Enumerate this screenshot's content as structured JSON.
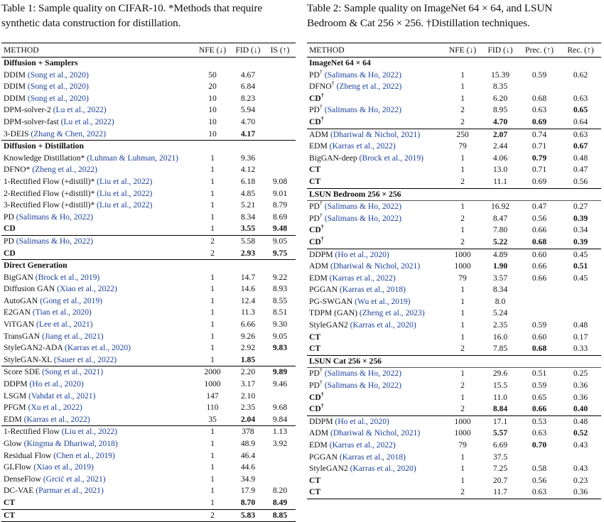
{
  "table1": {
    "caption": "Table 1: Sample quality on CIFAR-10. *Methods that require synthetic data construction for distillation.",
    "caption_line1": "Table 1: Sample quality on CIFAR-10. *Methods that require",
    "caption_line2": "synthetic data construction for distillation.",
    "headers": [
      "METHOD",
      "NFE (↓)",
      "FID (↓)",
      "IS (↑)"
    ],
    "rows": [
      {
        "kind": "section",
        "label": "Diffusion + Samplers",
        "line": "thin"
      },
      {
        "name": "DDIM",
        "ref": "(Song et al., 2020)",
        "nfe": "50",
        "fid": "4.67",
        "is": ""
      },
      {
        "name": "DDIM",
        "ref": "(Song et al., 2020)",
        "nfe": "20",
        "fid": "6.84",
        "is": ""
      },
      {
        "name": "DDIM",
        "ref": "(Song et al., 2020)",
        "nfe": "10",
        "fid": "8.23",
        "is": ""
      },
      {
        "name": "DPM-solver-2",
        "ref": "(Lu et al., 2022)",
        "nfe": "10",
        "fid": "5.94",
        "is": ""
      },
      {
        "name": "DPM-solver-fast",
        "ref": "(Lu et al., 2022)",
        "nfe": "10",
        "fid": "4.70",
        "is": ""
      },
      {
        "name": "3-DEIS",
        "ref": "(Zhang & Chen, 2022)",
        "nfe": "10",
        "fid": "4.17",
        "is": "",
        "bold": [
          "fid"
        ]
      },
      {
        "kind": "section",
        "label": "Diffusion + Distillation",
        "line": "sep"
      },
      {
        "name": "Knowledge Distillation*",
        "ref": "(Luhman & Luhman, 2021)",
        "nfe": "1",
        "fid": "9.36",
        "is": ""
      },
      {
        "name": "DFNO*",
        "ref": "(Zheng et al., 2022)",
        "nfe": "1",
        "fid": "4.12",
        "is": ""
      },
      {
        "name": "1-Rectified Flow (+distill)*",
        "ref": "(Liu et al., 2022)",
        "nfe": "1",
        "fid": "6.18",
        "is": "9.08"
      },
      {
        "name": "2-Rectified Flow (+distill)*",
        "ref": "(Liu et al., 2022)",
        "nfe": "1",
        "fid": "4.85",
        "is": "9.01"
      },
      {
        "name": "3-Rectified Flow (+distill)*",
        "ref": "(Liu et al., 2022)",
        "nfe": "1",
        "fid": "5.21",
        "is": "8.79"
      },
      {
        "name": "PD",
        "ref": "(Salimans & Ho, 2022)",
        "nfe": "1",
        "fid": "8.34",
        "is": "8.69"
      },
      {
        "name": "CD",
        "ref": "",
        "nfe": "1",
        "fid": "3.55",
        "is": "9.48",
        "bold": [
          "name",
          "fid",
          "is"
        ]
      },
      {
        "name": "PD",
        "ref": "(Salimans & Ho, 2022)",
        "nfe": "2",
        "fid": "5.58",
        "is": "9.05",
        "line": "sep"
      },
      {
        "name": "CD",
        "ref": "",
        "nfe": "2",
        "fid": "2.93",
        "is": "9.75",
        "bold": [
          "name",
          "fid",
          "is"
        ]
      },
      {
        "kind": "section",
        "label": "Direct Generation",
        "line": "sep"
      },
      {
        "name": "BigGAN",
        "ref": "(Brock et al., 2019)",
        "nfe": "1",
        "fid": "14.7",
        "is": "9.22"
      },
      {
        "name": "Diffusion GAN",
        "ref": "(Xiao et al., 2022)",
        "nfe": "1",
        "fid": "14.6",
        "is": "8.93"
      },
      {
        "name": "AutoGAN",
        "ref": "(Gong et al., 2019)",
        "nfe": "1",
        "fid": "12.4",
        "is": "8.55"
      },
      {
        "name": "E2GAN",
        "ref": "(Tian et al., 2020)",
        "nfe": "1",
        "fid": "11.3",
        "is": "8.51"
      },
      {
        "name": "ViTGAN",
        "ref": "(Lee et al., 2021)",
        "nfe": "1",
        "fid": "6.66",
        "is": "9.30"
      },
      {
        "name": "TransGAN",
        "ref": "(Jiang et al., 2021)",
        "nfe": "1",
        "fid": "9.26",
        "is": "9.05"
      },
      {
        "name": "StyleGAN2-ADA",
        "ref": "(Karras et al., 2020)",
        "nfe": "1",
        "fid": "2.92",
        "is": "9.83",
        "bold": [
          "is"
        ]
      },
      {
        "name": "StyleGAN-XL",
        "ref": "(Sauer et al., 2022)",
        "nfe": "1",
        "fid": "1.85",
        "is": "",
        "bold": [
          "fid"
        ]
      },
      {
        "name": "Score SDE",
        "ref": "(Song et al., 2021)",
        "nfe": "2000",
        "fid": "2.20",
        "is": "9.89",
        "bold": [
          "is"
        ],
        "line": "sep"
      },
      {
        "name": "DDPM",
        "ref": "(Ho et al., 2020)",
        "nfe": "1000",
        "fid": "3.17",
        "is": "9.46"
      },
      {
        "name": "LSGM",
        "ref": "(Vahdat et al., 2021)",
        "nfe": "147",
        "fid": "2.10",
        "is": ""
      },
      {
        "name": "PFGM",
        "ref": "(Xu et al., 2022)",
        "nfe": "110",
        "fid": "2.35",
        "is": "9.68"
      },
      {
        "name": "EDM",
        "ref": "(Karras et al., 2022)",
        "nfe": "35",
        "fid": "2.04",
        "is": "9.84",
        "bold": [
          "fid"
        ]
      },
      {
        "name": "1-Rectified Flow",
        "ref": "(Liu et al., 2022)",
        "nfe": "1",
        "fid": "378",
        "is": "1.13",
        "line": "sep"
      },
      {
        "name": "Glow",
        "ref": "(Kingma & Dhariwal, 2018)",
        "nfe": "1",
        "fid": "48.9",
        "is": "3.92"
      },
      {
        "name": "Residual Flow",
        "ref": "(Chen et al., 2019)",
        "nfe": "1",
        "fid": "46.4",
        "is": ""
      },
      {
        "name": "GLFlow",
        "ref": "(Xiao et al., 2019)",
        "nfe": "1",
        "fid": "44.6",
        "is": ""
      },
      {
        "name": "DenseFlow",
        "ref": "(Grcić et al., 2021)",
        "nfe": "1",
        "fid": "34.9",
        "is": ""
      },
      {
        "name": "DC-VAE",
        "ref": "(Parmar et al., 2021)",
        "nfe": "1",
        "fid": "17.9",
        "is": "8.20"
      },
      {
        "name": "CT",
        "ref": "",
        "nfe": "1",
        "fid": "8.70",
        "is": "8.49",
        "bold": [
          "name",
          "fid",
          "is"
        ]
      },
      {
        "name": "CT",
        "ref": "",
        "nfe": "2",
        "fid": "5.83",
        "is": "8.85",
        "bold": [
          "name",
          "fid",
          "is"
        ],
        "line": "sep"
      }
    ]
  },
  "table2": {
    "caption_line1": "Table 2: Sample quality on ImageNet 64 × 64, and LSUN",
    "caption_line2": "Bedroom & Cat 256 × 256. †Distillation techniques.",
    "headers": [
      "METHOD",
      "NFE (↓)",
      "FID (↓)",
      "Prec. (↑)",
      "Rec. (↑)"
    ],
    "rows": [
      {
        "kind": "section",
        "label": "ImageNet 64 × 64",
        "line": "thin"
      },
      {
        "name": "PD",
        "dag": true,
        "ref": "(Salimans & Ho, 2022)",
        "nfe": "1",
        "fid": "15.39",
        "prec": "0.59",
        "rec": "0.62"
      },
      {
        "name": "DFNO",
        "dag": true,
        "ref": "(Zheng et al., 2022)",
        "nfe": "1",
        "fid": "8.35",
        "prec": "",
        "rec": ""
      },
      {
        "name": "CD",
        "dag": true,
        "ref": "",
        "nfe": "1",
        "fid": "6.20",
        "prec": "0.68",
        "rec": "0.63",
        "bold": [
          "name"
        ]
      },
      {
        "name": "PD",
        "dag": true,
        "ref": "(Salimans & Ho, 2022)",
        "nfe": "2",
        "fid": "8.95",
        "prec": "0.63",
        "rec": "0.65",
        "bold": [
          "rec"
        ]
      },
      {
        "name": "CD",
        "dag": true,
        "ref": "",
        "nfe": "2",
        "fid": "4.70",
        "prec": "0.69",
        "rec": "0.64",
        "bold": [
          "name",
          "fid",
          "prec"
        ]
      },
      {
        "name": "ADM",
        "ref": "(Dhariwal & Nichol, 2021)",
        "nfe": "250",
        "fid": "2.07",
        "prec": "0.74",
        "rec": "0.63",
        "bold": [
          "fid"
        ],
        "line": "sep"
      },
      {
        "name": "EDM",
        "ref": "(Karras et al., 2022)",
        "nfe": "79",
        "fid": "2.44",
        "prec": "0.71",
        "rec": "0.67",
        "bold": [
          "rec"
        ]
      },
      {
        "name": "BigGAN-deep",
        "ref": "(Brock et al., 2019)",
        "nfe": "1",
        "fid": "4.06",
        "prec": "0.79",
        "rec": "0.48",
        "bold": [
          "prec"
        ]
      },
      {
        "name": "CT",
        "ref": "",
        "nfe": "1",
        "fid": "13.0",
        "prec": "0.71",
        "rec": "0.47",
        "bold": [
          "name"
        ]
      },
      {
        "name": "CT",
        "ref": "",
        "nfe": "2",
        "fid": "11.1",
        "prec": "0.69",
        "rec": "0.56",
        "bold": [
          "name"
        ]
      },
      {
        "kind": "section",
        "label": "LSUN Bedroom 256 × 256",
        "line": "sep"
      },
      {
        "name": "PD",
        "dag": true,
        "ref": "(Salimans & Ho, 2022)",
        "nfe": "1",
        "fid": "16.92",
        "prec": "0.47",
        "rec": "0.27",
        "line": "thin"
      },
      {
        "name": "PD",
        "dag": true,
        "ref": "(Salimans & Ho, 2022)",
        "nfe": "2",
        "fid": "8.47",
        "prec": "0.56",
        "rec": "0.39",
        "bold": [
          "rec"
        ]
      },
      {
        "name": "CD",
        "dag": true,
        "ref": "",
        "nfe": "1",
        "fid": "7.80",
        "prec": "0.66",
        "rec": "0.34",
        "bold": [
          "name"
        ]
      },
      {
        "name": "CD",
        "dag": true,
        "ref": "",
        "nfe": "2",
        "fid": "5.22",
        "prec": "0.68",
        "rec": "0.39",
        "bold": [
          "name",
          "fid",
          "prec",
          "rec"
        ]
      },
      {
        "name": "DDPM",
        "ref": "(Ho et al., 2020)",
        "nfe": "1000",
        "fid": "4.89",
        "prec": "0.60",
        "rec": "0.45",
        "line": "sep"
      },
      {
        "name": "ADM",
        "ref": "(Dhariwal & Nichol, 2021)",
        "nfe": "1000",
        "fid": "1.90",
        "prec": "0.66",
        "rec": "0.51",
        "bold": [
          "fid",
          "rec"
        ]
      },
      {
        "name": "EDM",
        "ref": "(Karras et al., 2022)",
        "nfe": "79",
        "fid": "3.57",
        "prec": "0.66",
        "rec": "0.45"
      },
      {
        "name": "PGGAN",
        "ref": "(Karras et al., 2018)",
        "nfe": "1",
        "fid": "8.34",
        "prec": "",
        "rec": ""
      },
      {
        "name": "PG-SWGAN",
        "ref": "(Wu et al., 2019)",
        "nfe": "1",
        "fid": "8.0",
        "prec": "",
        "rec": ""
      },
      {
        "name": "TDPM (GAN)",
        "ref": "(Zheng et al., 2023)",
        "nfe": "1",
        "fid": "5.24",
        "prec": "",
        "rec": ""
      },
      {
        "name": "StyleGAN2",
        "ref": "(Karras et al., 2020)",
        "nfe": "1",
        "fid": "2.35",
        "prec": "0.59",
        "rec": "0.48"
      },
      {
        "name": "CT",
        "ref": "",
        "nfe": "1",
        "fid": "16.0",
        "prec": "0.60",
        "rec": "0.17",
        "bold": [
          "name"
        ]
      },
      {
        "name": "CT",
        "ref": "",
        "nfe": "2",
        "fid": "7.85",
        "prec": "0.68",
        "rec": "0.33",
        "bold": [
          "name",
          "prec"
        ]
      },
      {
        "kind": "section",
        "label": "LSUN Cat 256 × 256",
        "line": "sep"
      },
      {
        "name": "PD",
        "dag": true,
        "ref": "(Salimans & Ho, 2022)",
        "nfe": "1",
        "fid": "29.6",
        "prec": "0.51",
        "rec": "0.25",
        "line": "thin"
      },
      {
        "name": "PD",
        "dag": true,
        "ref": "(Salimans & Ho, 2022)",
        "nfe": "2",
        "fid": "15.5",
        "prec": "0.59",
        "rec": "0.36"
      },
      {
        "name": "CD",
        "dag": true,
        "ref": "",
        "nfe": "1",
        "fid": "11.0",
        "prec": "0.65",
        "rec": "0.36",
        "bold": [
          "name"
        ]
      },
      {
        "name": "CD",
        "dag": true,
        "ref": "",
        "nfe": "2",
        "fid": "8.84",
        "prec": "0.66",
        "rec": "0.40",
        "bold": [
          "name",
          "fid",
          "prec",
          "rec"
        ]
      },
      {
        "name": "DDPM",
        "ref": "(Ho et al., 2020)",
        "nfe": "1000",
        "fid": "17.1",
        "prec": "0.53",
        "rec": "0.48",
        "line": "sep"
      },
      {
        "name": "ADM",
        "ref": "(Dhariwal & Nichol, 2021)",
        "nfe": "1000",
        "fid": "5.57",
        "prec": "0.63",
        "rec": "0.52",
        "bold": [
          "fid",
          "rec"
        ]
      },
      {
        "name": "EDM",
        "ref": "(Karras et al., 2022)",
        "nfe": "79",
        "fid": "6.69",
        "prec": "0.70",
        "rec": "0.43",
        "bold": [
          "prec"
        ]
      },
      {
        "name": "PGGAN",
        "ref": "(Karras et al., 2018)",
        "nfe": "1",
        "fid": "37.5",
        "prec": "",
        "rec": ""
      },
      {
        "name": "StyleGAN2",
        "ref": "(Karras et al., 2020)",
        "nfe": "1",
        "fid": "7.25",
        "prec": "0.58",
        "rec": "0.43"
      },
      {
        "name": "CT",
        "ref": "",
        "nfe": "1",
        "fid": "20.7",
        "prec": "0.56",
        "rec": "0.23",
        "bold": [
          "name"
        ]
      },
      {
        "name": "CT",
        "ref": "",
        "nfe": "2",
        "fid": "11.7",
        "prec": "0.63",
        "rec": "0.36",
        "bold": [
          "name"
        ]
      }
    ]
  },
  "colors": {
    "citation": "#1a3f9c",
    "text": "#111111",
    "rule": "#000000"
  }
}
